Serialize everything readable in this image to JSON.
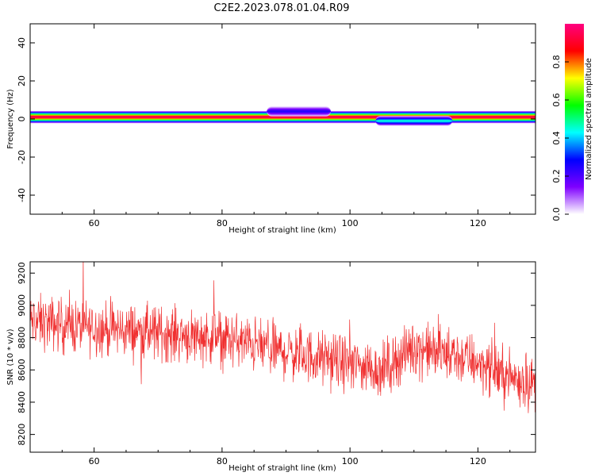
{
  "title": "C2E2.2023.078.01.04.R09",
  "chart_data": [
    {
      "type": "heatmap",
      "xlabel": "Height of straight line (km)",
      "ylabel": "Frequency (Hz)",
      "xlim": [
        50,
        129
      ],
      "ylim": [
        -50,
        50
      ],
      "x_ticks": [
        60,
        80,
        100,
        120
      ],
      "y_ticks": [
        -40,
        -20,
        0,
        20,
        40
      ],
      "colorbar": {
        "label": "Normalized spectral amplitude",
        "range": [
          0,
          1
        ],
        "ticks": [
          0.0,
          0.2,
          0.4,
          0.6,
          0.8
        ],
        "colors": [
          "#ffffff",
          "#7f00ff",
          "#0000ff",
          "#00ffff",
          "#00ff00",
          "#ffff00",
          "#ff0000",
          "#ff0080"
        ]
      },
      "description_bands": [
        {
          "x_start": 50,
          "x_end": 129,
          "center_hz": 1,
          "peak": 0.95
        },
        {
          "x_start": 87,
          "x_end": 97,
          "center_hz": 4,
          "peak": 0.25
        },
        {
          "x_start": 104,
          "x_end": 116,
          "center_hz": -1,
          "peak": 0.45
        }
      ]
    },
    {
      "type": "line",
      "xlabel": "Height of straight line (km)",
      "ylabel": "SNR (10 * v/v)",
      "xlim": [
        50,
        129
      ],
      "ylim": [
        8090,
        9270
      ],
      "x_ticks": [
        60,
        80,
        100,
        120
      ],
      "y_ticks": [
        8200,
        8400,
        8600,
        8800,
        9000,
        9200
      ],
      "color": "#f03030",
      "trend": {
        "x": [
          50,
          60,
          70,
          80,
          90,
          100,
          105,
          110,
          115,
          120,
          124,
          129
        ],
        "y": [
          8900,
          8860,
          8830,
          8800,
          8710,
          8640,
          8600,
          8740,
          8700,
          8650,
          8570,
          8510
        ]
      },
      "noise_amplitude": 150
    }
  ]
}
